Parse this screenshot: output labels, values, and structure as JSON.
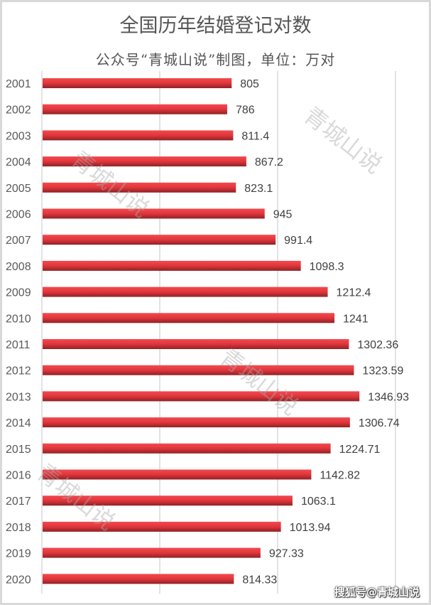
{
  "chart_data": {
    "type": "bar",
    "orientation": "horizontal",
    "title": "全国历年结婚登记对数",
    "subtitle": "公众号“青城山说”制图，单位：万对",
    "categories": [
      "2001",
      "2002",
      "2003",
      "2004",
      "2005",
      "2006",
      "2007",
      "2008",
      "2009",
      "2010",
      "2011",
      "2012",
      "2013",
      "2014",
      "2015",
      "2016",
      "2017",
      "2018",
      "2019",
      "2020"
    ],
    "values": [
      805,
      786,
      811.4,
      867.2,
      823.1,
      945,
      991.4,
      1098.3,
      1212.4,
      1241,
      1302.36,
      1323.59,
      1346.93,
      1306.74,
      1224.71,
      1142.82,
      1063.1,
      1013.94,
      927.33,
      814.33
    ],
    "data_labels": [
      "805",
      "786",
      "811.4",
      "867.2",
      "823.1",
      "945",
      "991.4",
      "1098.3",
      "1212.4",
      "1241",
      "1302.36",
      "1323.59",
      "1346.93",
      "1306.74",
      "1224.71",
      "1142.82",
      "1063.1",
      "1013.94",
      "927.33",
      "814.33"
    ],
    "xlim": [
      0,
      1500
    ],
    "grid": true,
    "bar_color": "#e8373d",
    "xlabel": "",
    "ylabel": ""
  },
  "watermarks": [
    "青城山说",
    "青城山说",
    "青城山说",
    "青城山说"
  ],
  "footer_watermark": "搜狐号@青城山说"
}
